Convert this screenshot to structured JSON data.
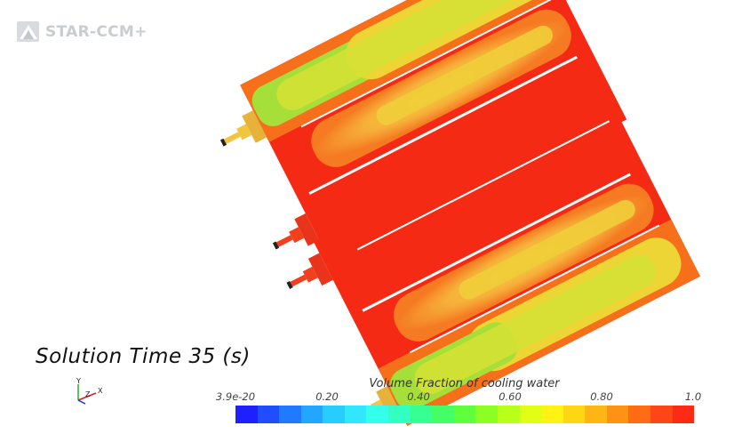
{
  "app": {
    "logo_text": "STAR-CCM+"
  },
  "scene": {
    "annotation": "Solution Time 35 (s)",
    "triad_labels": {
      "y": "Y",
      "z": "Z",
      "x": "X"
    }
  },
  "legend": {
    "title": "Volume Fraction of cooling water",
    "ticks": [
      "3.9e-20",
      "0.20",
      "0.40",
      "0.60",
      "0.80",
      "1.0"
    ],
    "colors": [
      "#1e20ff",
      "#1f4dff",
      "#1f7aff",
      "#22a6ff",
      "#29ccff",
      "#33e6ff",
      "#33ffea",
      "#33ffc0",
      "#36ff93",
      "#45ff66",
      "#5fff3e",
      "#8cff24",
      "#b8ff1a",
      "#e1ff14",
      "#fff214",
      "#ffd614",
      "#ffb514",
      "#ff9114",
      "#ff6c14",
      "#ff4616",
      "#ff2a14"
    ]
  },
  "colors": {
    "red": "#f52a14",
    "orange": "#f77a1e",
    "yellow": "#f5d830",
    "green": "#9fe03a",
    "fitting": "#e8a030"
  }
}
